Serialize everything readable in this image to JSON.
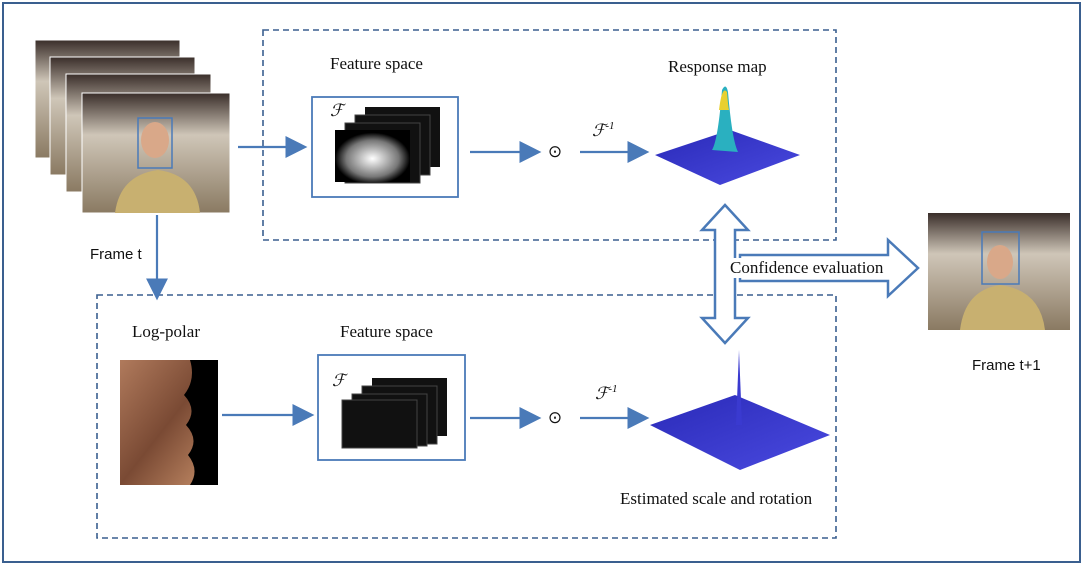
{
  "frame_t": "Frame t",
  "frame_t1": "Frame t+1",
  "confidence": "Confidence evaluation",
  "top_branch": {
    "feature_label": "Feature space",
    "fourier": "ℱ",
    "operator": "⊙",
    "inverse_fourier": {
      "symbol": "ℱ",
      "exponent": "-1"
    },
    "response_label": "Response map"
  },
  "bottom_branch": {
    "log_polar_label": "Log-polar",
    "feature_label": "Feature space",
    "fourier": "ℱ",
    "operator": "⊙",
    "inverse_fourier": {
      "symbol": "ℱ",
      "exponent": "-1"
    },
    "estimated_label": "Estimated scale and rotation"
  }
}
